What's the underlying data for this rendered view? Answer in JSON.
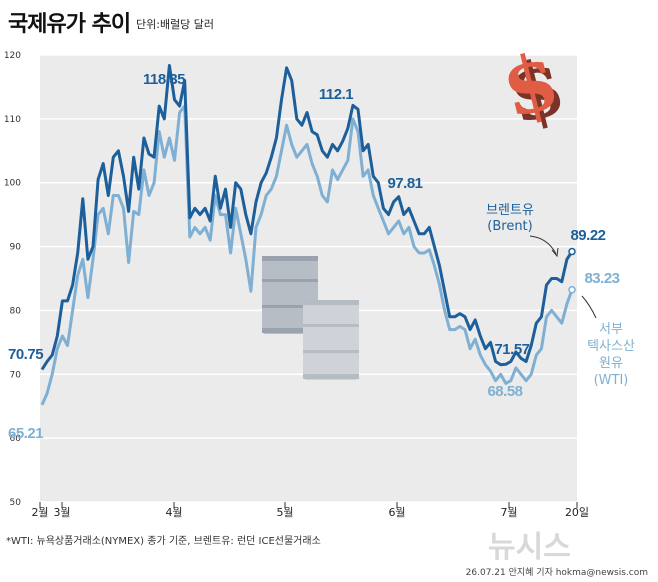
{
  "title": "국제유가 추이",
  "unit_label": "단위:배럴당 달러",
  "footnote": "*WTI: 뉴욕상품거래소(NYMEX) 종가 기준, 브렌트유: 런던 ICE선물거래소",
  "credit": "26.07.21 안지혜 기자  hokma@newsis.com",
  "watermark": "뉴시스",
  "chart_data": {
    "type": "line",
    "title": "국제유가 추이",
    "ylim": [
      50,
      120
    ],
    "yticks": [
      50,
      60,
      70,
      80,
      90,
      100,
      110,
      120
    ],
    "xlabels": [
      "2월",
      "3월",
      "4월",
      "5월",
      "6월",
      "7월",
      "20일"
    ],
    "colors": {
      "brent": "#1d5f9a",
      "wti": "#7fb0d3",
      "plot_bg": "#ebebeb"
    },
    "series": [
      {
        "name": "브렌트유 (Brent)",
        "label_lines": [
          "브렌트유",
          "(Brent)"
        ],
        "values": [
          70.75,
          72.0,
          73.0,
          76.0,
          81.5,
          81.5,
          84.0,
          89.0,
          97.5,
          88.0,
          90.0,
          100.5,
          103.0,
          98.0,
          104.0,
          105.0,
          101.0,
          95.5,
          104.0,
          99.0,
          107.0,
          104.5,
          104.0,
          112.0,
          110.0,
          118.35,
          113.0,
          112.0,
          116.0,
          94.5,
          96.0,
          95.0,
          96.0,
          94.0,
          101.0,
          96.0,
          99.0,
          93.0,
          100.0,
          99.0,
          95.0,
          92.0,
          97.0,
          100.0,
          101.5,
          104.0,
          107.0,
          113.0,
          118.0,
          116.0,
          110.0,
          109.0,
          111.0,
          108.0,
          107.5,
          105.0,
          104.0,
          106.0,
          105.0,
          106.5,
          108.5,
          112.1,
          111.5,
          105.0,
          106.0,
          101.0,
          100.0,
          96.0,
          95.0,
          97.0,
          97.81,
          95.0,
          96.0,
          94.0,
          92.0,
          92.0,
          93.0,
          90.0,
          87.0,
          83.0,
          79.0,
          79.0,
          79.5,
          79.0,
          77.0,
          78.5,
          76.0,
          74.0,
          75.0,
          72.0,
          71.5,
          71.57,
          72.0,
          73.5,
          72.5,
          72.0,
          74.5,
          78.0,
          79.0,
          84.0,
          85.0,
          85.0,
          84.5,
          88.0,
          89.22
        ]
      },
      {
        "name": "서부텍사스산원유 (WTI)",
        "label_lines": [
          "서부",
          "텍사스산",
          "원유",
          "(WTI)"
        ],
        "values": [
          65.21,
          67.0,
          70.0,
          74.0,
          76.0,
          74.5,
          80.0,
          85.5,
          88.0,
          82.0,
          88.0,
          95.0,
          96.0,
          92.0,
          98.0,
          98.0,
          96.0,
          87.5,
          95.5,
          95.0,
          102.0,
          98.0,
          100.0,
          108.0,
          104.0,
          107.0,
          103.5,
          111.0,
          112.0,
          91.5,
          93.0,
          92.0,
          93.0,
          91.0,
          98.0,
          95.0,
          95.0,
          89.0,
          96.0,
          92.0,
          88.0,
          83.0,
          93.0,
          95.0,
          98.0,
          99.0,
          101.0,
          105.0,
          109.0,
          106.0,
          104.0,
          105.0,
          106.0,
          103.0,
          101.0,
          98.0,
          97.0,
          102.0,
          100.5,
          102.0,
          103.5,
          110.0,
          108.0,
          101.0,
          102.0,
          98.0,
          96.0,
          94.0,
          92.0,
          93.0,
          94.0,
          92.0,
          93.0,
          90.0,
          89.0,
          89.0,
          89.5,
          87.0,
          84.0,
          80.0,
          77.0,
          77.0,
          77.5,
          77.0,
          74.0,
          75.5,
          73.0,
          71.5,
          70.5,
          69.0,
          70.0,
          68.58,
          69.0,
          71.0,
          70.0,
          69.0,
          70.0,
          73.0,
          74.0,
          79.0,
          80.0,
          79.0,
          78.0,
          81.0,
          83.23
        ]
      }
    ],
    "annotations": [
      {
        "series": "brent",
        "label": "70.75"
      },
      {
        "series": "brent",
        "label": "118.35"
      },
      {
        "series": "brent",
        "label": "112.1"
      },
      {
        "series": "brent",
        "label": "97.81"
      },
      {
        "series": "brent",
        "label": "71.57"
      },
      {
        "series": "brent",
        "label": "89.22"
      },
      {
        "series": "wti",
        "label": "65.21"
      },
      {
        "series": "wti",
        "label": "68.58"
      },
      {
        "series": "wti",
        "label": "83.23"
      }
    ]
  }
}
